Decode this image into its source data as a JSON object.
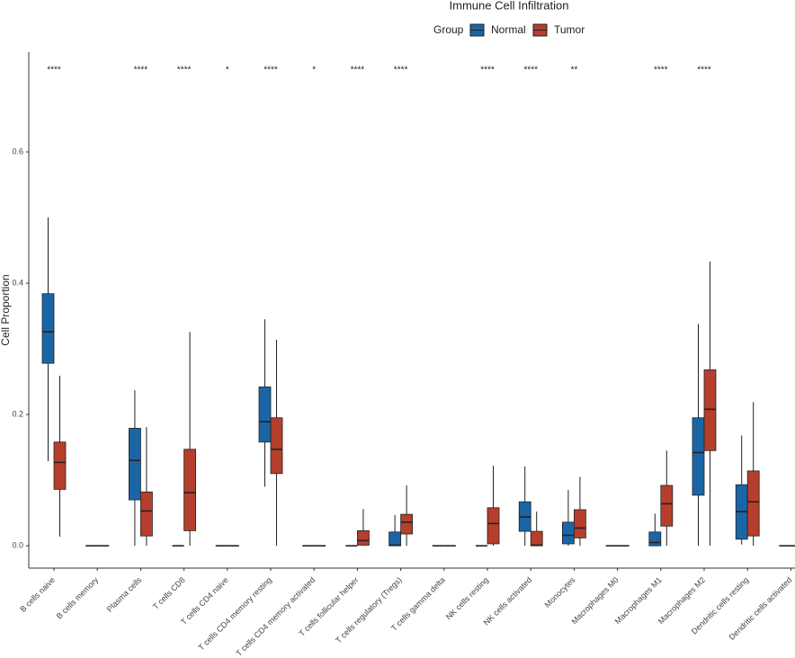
{
  "chart_data": {
    "type": "box",
    "title": "Immune Cell Infiltration",
    "legend_title": "Group",
    "ylabel": "Cell Proportion",
    "categories": [
      "B cells naive",
      "B cells memory",
      "Plasma cells",
      "T cells CD8",
      "T cells CD4 naive",
      "T cells CD4 memory resting",
      "T cells CD4 memory activated",
      "T cells follicular helper",
      "T cells regulatory (Tregs)",
      "T cells gamma delta",
      "NK cells resting",
      "NK cells activated",
      "Monocytes",
      "Macrophages M0",
      "Macrophages M1",
      "Macrophages M2",
      "Dendritic cells resting",
      "Dendritic cells activated"
    ],
    "significance": [
      "****",
      null,
      "****",
      "****",
      "*",
      "****",
      "*",
      "****",
      "****",
      null,
      "****",
      "****",
      "**",
      null,
      "****",
      "****",
      null,
      null
    ],
    "series": [
      {
        "name": "Normal",
        "color": "#1a65a6",
        "values": [
          [
            0.129,
            0.278,
            0.326,
            0.384,
            0.5
          ],
          [
            0,
            0,
            0,
            0,
            0
          ],
          [
            0,
            0.07,
            0.13,
            0.179,
            0.237
          ],
          [
            0,
            0,
            0,
            0,
            0
          ],
          [
            0,
            0,
            0,
            0,
            0
          ],
          [
            0.09,
            0.158,
            0.189,
            0.242,
            0.345
          ],
          [
            0,
            0,
            0,
            0,
            0
          ],
          [
            0,
            0,
            0,
            0,
            0
          ],
          [
            0,
            0,
            0.001,
            0.021,
            0.047
          ],
          [
            0,
            0,
            0,
            0,
            0
          ],
          [
            0,
            0,
            0,
            0,
            0
          ],
          [
            0,
            0.022,
            0.044,
            0.067,
            0.121
          ],
          [
            0,
            0.003,
            0.016,
            0.036,
            0.085
          ],
          [
            0,
            0,
            0,
            0,
            0
          ],
          [
            0,
            0,
            0.005,
            0.021,
            0.049
          ],
          [
            0,
            0.077,
            0.142,
            0.195,
            0.338
          ],
          [
            0.002,
            0.01,
            0.052,
            0.093,
            0.168
          ],
          [
            0,
            0,
            0,
            0,
            0
          ]
        ]
      },
      {
        "name": "Tumor",
        "color": "#b53f2c",
        "values": [
          [
            0.014,
            0.086,
            0.127,
            0.158,
            0.259
          ],
          [
            0,
            0,
            0,
            0,
            0
          ],
          [
            0,
            0.015,
            0.053,
            0.082,
            0.181
          ],
          [
            0,
            0.023,
            0.081,
            0.147,
            0.326
          ],
          [
            0,
            0,
            0,
            0,
            0
          ],
          [
            0,
            0.11,
            0.147,
            0.195,
            0.314
          ],
          [
            0,
            0,
            0,
            0,
            0
          ],
          [
            0,
            0.001,
            0.008,
            0.023,
            0.056
          ],
          [
            0,
            0.018,
            0.036,
            0.048,
            0.092
          ],
          [
            0,
            0,
            0,
            0,
            0
          ],
          [
            0,
            0.003,
            0.034,
            0.058,
            0.122
          ],
          [
            0,
            0,
            0.001,
            0.022,
            0.052
          ],
          [
            0,
            0.012,
            0.027,
            0.055,
            0.105
          ],
          [
            0,
            0,
            0,
            0,
            0
          ],
          [
            0,
            0.03,
            0.064,
            0.092,
            0.145
          ],
          [
            0,
            0.145,
            0.208,
            0.268,
            0.433
          ],
          [
            0,
            0.015,
            0.067,
            0.114,
            0.219
          ],
          [
            0,
            0,
            0,
            0,
            0
          ]
        ]
      }
    ],
    "ylim": [
      -0.034,
      0.752
    ],
    "yticks": [
      {
        "value": 0,
        "label": "0.0"
      },
      0.2,
      0.4,
      0.6
    ]
  }
}
